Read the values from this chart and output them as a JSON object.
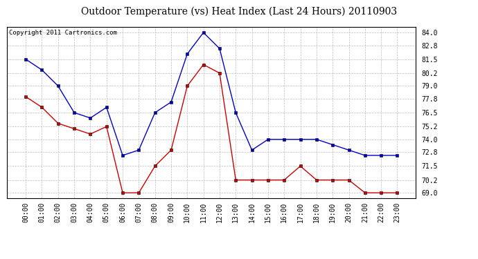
{
  "title": "Outdoor Temperature (vs) Heat Index (Last 24 Hours) 20110903",
  "copyright_text": "Copyright 2011 Cartronics.com",
  "hours": [
    "00:00",
    "01:00",
    "02:00",
    "03:00",
    "04:00",
    "05:00",
    "06:00",
    "07:00",
    "08:00",
    "09:00",
    "10:00",
    "11:00",
    "12:00",
    "13:00",
    "14:00",
    "15:00",
    "16:00",
    "17:00",
    "18:00",
    "19:00",
    "20:00",
    "21:00",
    "22:00",
    "23:00"
  ],
  "blue_temp": [
    81.5,
    80.5,
    79.0,
    76.5,
    76.0,
    77.0,
    72.5,
    73.0,
    76.5,
    77.5,
    82.0,
    84.0,
    82.5,
    76.5,
    73.0,
    74.0,
    74.0,
    74.0,
    74.0,
    73.5,
    73.0,
    72.5,
    72.5,
    72.5
  ],
  "red_heat": [
    78.0,
    77.0,
    75.5,
    75.0,
    74.5,
    75.2,
    69.0,
    69.0,
    71.5,
    73.0,
    79.0,
    81.0,
    80.2,
    70.2,
    70.2,
    70.2,
    70.2,
    71.5,
    70.2,
    70.2,
    70.2,
    69.0,
    69.0,
    69.0
  ],
  "blue_color": "#0000cc",
  "red_color": "#cc0000",
  "bg_color": "#ffffff",
  "plot_bg_color": "#ffffff",
  "grid_color": "#bbbbbb",
  "ylim_min": 68.5,
  "ylim_max": 84.5,
  "yticks": [
    69.0,
    70.2,
    71.5,
    72.8,
    74.0,
    75.2,
    76.5,
    77.8,
    79.0,
    80.2,
    81.5,
    82.8,
    84.0
  ],
  "title_fontsize": 10,
  "copyright_fontsize": 6.5,
  "tick_fontsize": 7
}
